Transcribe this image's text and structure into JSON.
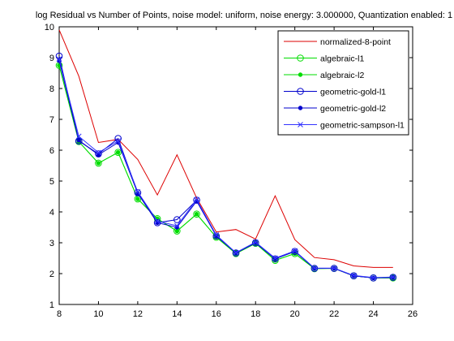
{
  "chart_data": {
    "type": "line",
    "title": "log Residual vs Number of Points, noise model: uniform, noise energy: 3.000000, Quantization enabled: 1",
    "xlabel": "",
    "ylabel": "",
    "xlim": [
      8,
      26
    ],
    "ylim": [
      1,
      10
    ],
    "x_ticks": [
      8,
      10,
      12,
      14,
      16,
      18,
      20,
      22,
      24,
      26
    ],
    "y_ticks": [
      1,
      2,
      3,
      4,
      5,
      6,
      7,
      8,
      9,
      10
    ],
    "grid": false,
    "legend_position": "top-right",
    "x": [
      8,
      9,
      10,
      11,
      12,
      13,
      14,
      15,
      16,
      17,
      18,
      19,
      20,
      21,
      22,
      23,
      24,
      25
    ],
    "series": [
      {
        "name": "normalized-8-point",
        "color": "#dd0000",
        "marker": "none",
        "values": [
          9.9,
          8.4,
          6.25,
          6.35,
          5.7,
          4.55,
          5.85,
          4.45,
          3.35,
          3.43,
          3.12,
          4.52,
          3.1,
          2.52,
          2.45,
          2.25,
          2.2,
          2.2
        ]
      },
      {
        "name": "algebraic-l1",
        "color": "#00dd00",
        "marker": "open-circle",
        "values": [
          8.75,
          6.28,
          5.58,
          5.93,
          4.42,
          3.78,
          3.38,
          3.93,
          3.18,
          2.65,
          2.98,
          2.43,
          2.65,
          2.16,
          2.17,
          1.93,
          1.86,
          1.86
        ]
      },
      {
        "name": "algebraic-l2",
        "color": "#00dd00",
        "marker": "dot",
        "values": [
          8.75,
          6.28,
          5.58,
          5.93,
          4.42,
          3.78,
          3.38,
          3.93,
          3.18,
          2.65,
          2.98,
          2.43,
          2.65,
          2.16,
          2.17,
          1.93,
          1.86,
          1.86
        ]
      },
      {
        "name": "geometric-gold-l1",
        "color": "#0000cc",
        "marker": "open-circle",
        "values": [
          9.05,
          6.3,
          5.88,
          6.38,
          4.62,
          3.65,
          3.75,
          4.38,
          3.22,
          2.67,
          3.0,
          2.48,
          2.72,
          2.17,
          2.17,
          1.93,
          1.86,
          1.88
        ]
      },
      {
        "name": "geometric-gold-l2",
        "color": "#0000cc",
        "marker": "dot",
        "values": [
          8.9,
          6.32,
          5.85,
          6.25,
          4.6,
          3.65,
          3.5,
          4.35,
          3.22,
          2.67,
          3.0,
          2.48,
          2.72,
          2.17,
          2.17,
          1.93,
          1.86,
          1.88
        ]
      },
      {
        "name": "geometric-sampson-l1",
        "color": "#3333ff",
        "marker": "x",
        "values": [
          8.95,
          6.45,
          5.92,
          6.3,
          4.65,
          3.7,
          3.55,
          4.4,
          3.25,
          2.68,
          3.02,
          2.5,
          2.74,
          2.18,
          2.18,
          1.94,
          1.87,
          1.89
        ]
      }
    ]
  }
}
